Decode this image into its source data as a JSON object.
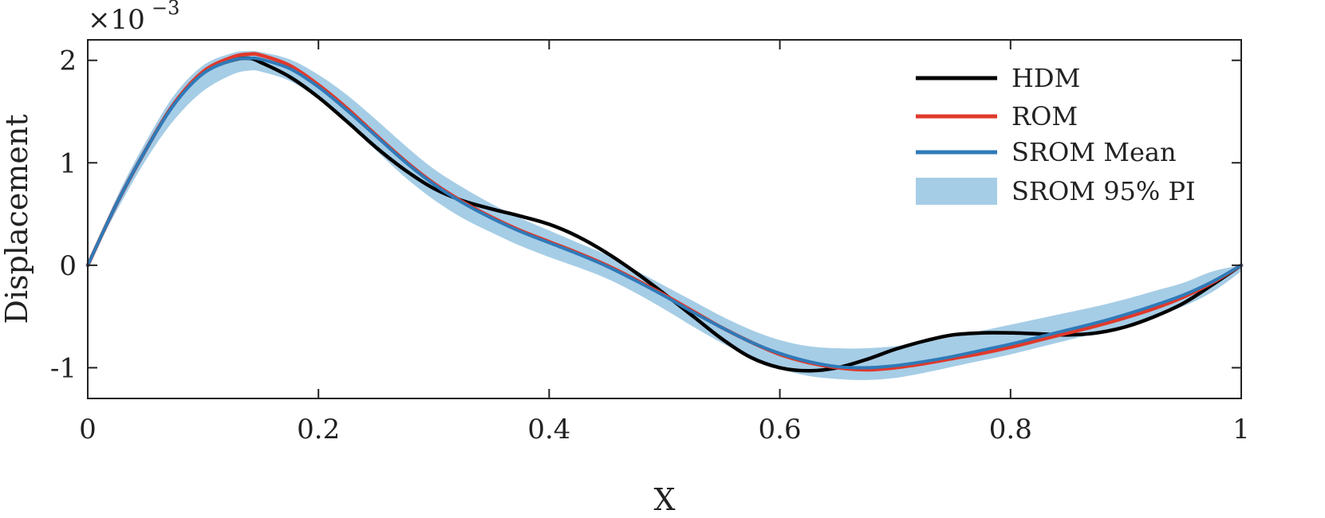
{
  "chart_data": {
    "type": "line",
    "xlabel": "X",
    "ylabel": "Displacement",
    "y_multiplier": "×10",
    "y_multiplier_exponent": "−3",
    "xlim": [
      0,
      1
    ],
    "ylim": [
      -1.3,
      2.2
    ],
    "x_ticks": [
      0,
      0.2,
      0.4,
      0.6,
      0.8,
      1
    ],
    "x_tick_labels": [
      "0",
      "0.2",
      "0.4",
      "0.6",
      "0.8",
      "1"
    ],
    "y_ticks": [
      -1,
      0,
      1,
      2
    ],
    "y_tick_labels": [
      "-1",
      "0",
      "1",
      "2"
    ],
    "grid": false,
    "legend_position": "top-right",
    "series": [
      {
        "name": "HDM",
        "color": "#000000",
        "x": [
          0,
          0.025,
          0.05,
          0.075,
          0.1,
          0.125,
          0.14,
          0.15,
          0.175,
          0.2,
          0.225,
          0.25,
          0.275,
          0.3,
          0.325,
          0.35,
          0.375,
          0.4,
          0.425,
          0.45,
          0.475,
          0.5,
          0.525,
          0.55,
          0.575,
          0.6,
          0.625,
          0.65,
          0.675,
          0.7,
          0.725,
          0.75,
          0.775,
          0.8,
          0.825,
          0.85,
          0.875,
          0.9,
          0.925,
          0.95,
          0.975,
          1.0
        ],
        "y": [
          0,
          0.6,
          1.12,
          1.58,
          1.88,
          2.0,
          2.02,
          1.98,
          1.84,
          1.64,
          1.4,
          1.15,
          0.93,
          0.75,
          0.63,
          0.55,
          0.48,
          0.4,
          0.28,
          0.12,
          -0.07,
          -0.28,
          -0.5,
          -0.72,
          -0.9,
          -1.0,
          -1.03,
          -1.0,
          -0.92,
          -0.82,
          -0.74,
          -0.68,
          -0.66,
          -0.66,
          -0.67,
          -0.68,
          -0.66,
          -0.6,
          -0.5,
          -0.37,
          -0.19,
          0
        ]
      },
      {
        "name": "ROM",
        "color": "#e0392b",
        "x": [
          0,
          0.025,
          0.05,
          0.075,
          0.1,
          0.125,
          0.14,
          0.15,
          0.175,
          0.2,
          0.225,
          0.25,
          0.275,
          0.3,
          0.325,
          0.35,
          0.375,
          0.4,
          0.425,
          0.45,
          0.475,
          0.5,
          0.525,
          0.55,
          0.575,
          0.6,
          0.625,
          0.65,
          0.675,
          0.7,
          0.725,
          0.75,
          0.775,
          0.8,
          0.825,
          0.85,
          0.875,
          0.9,
          0.925,
          0.95,
          0.975,
          1.0
        ],
        "y": [
          0,
          0.6,
          1.12,
          1.58,
          1.89,
          2.03,
          2.06,
          2.05,
          1.95,
          1.76,
          1.53,
          1.27,
          1.02,
          0.8,
          0.62,
          0.47,
          0.34,
          0.23,
          0.12,
          0.0,
          -0.14,
          -0.29,
          -0.45,
          -0.61,
          -0.75,
          -0.87,
          -0.95,
          -1.0,
          -1.02,
          -1.0,
          -0.96,
          -0.91,
          -0.86,
          -0.8,
          -0.73,
          -0.66,
          -0.59,
          -0.51,
          -0.42,
          -0.31,
          -0.17,
          0
        ]
      },
      {
        "name": "SROM Mean",
        "color": "#2f7ab8",
        "x": [
          0,
          0.025,
          0.05,
          0.075,
          0.1,
          0.125,
          0.14,
          0.15,
          0.175,
          0.2,
          0.225,
          0.25,
          0.275,
          0.3,
          0.325,
          0.35,
          0.375,
          0.4,
          0.425,
          0.45,
          0.475,
          0.5,
          0.525,
          0.55,
          0.575,
          0.6,
          0.625,
          0.65,
          0.675,
          0.7,
          0.725,
          0.75,
          0.775,
          0.8,
          0.825,
          0.85,
          0.875,
          0.9,
          0.925,
          0.95,
          0.975,
          1.0
        ],
        "y": [
          0,
          0.6,
          1.12,
          1.57,
          1.87,
          2.0,
          2.02,
          2.01,
          1.92,
          1.74,
          1.51,
          1.26,
          1.01,
          0.79,
          0.61,
          0.46,
          0.33,
          0.22,
          0.11,
          -0.01,
          -0.15,
          -0.3,
          -0.46,
          -0.61,
          -0.75,
          -0.86,
          -0.94,
          -0.99,
          -1.0,
          -0.98,
          -0.94,
          -0.89,
          -0.83,
          -0.77,
          -0.7,
          -0.63,
          -0.56,
          -0.48,
          -0.39,
          -0.29,
          -0.16,
          0
        ]
      }
    ],
    "band": {
      "name": "SROM 95% PI",
      "color": "#a6cde6",
      "x": [
        0,
        0.025,
        0.05,
        0.075,
        0.1,
        0.125,
        0.14,
        0.15,
        0.175,
        0.2,
        0.225,
        0.25,
        0.275,
        0.3,
        0.325,
        0.35,
        0.375,
        0.4,
        0.425,
        0.45,
        0.475,
        0.5,
        0.525,
        0.55,
        0.575,
        0.6,
        0.625,
        0.65,
        0.675,
        0.7,
        0.725,
        0.75,
        0.775,
        0.8,
        0.825,
        0.85,
        0.875,
        0.9,
        0.925,
        0.95,
        0.975,
        1.0
      ],
      "lower": [
        0,
        0.53,
        1.02,
        1.42,
        1.7,
        1.86,
        1.9,
        1.89,
        1.8,
        1.62,
        1.38,
        1.12,
        0.86,
        0.64,
        0.46,
        0.32,
        0.19,
        0.08,
        -0.02,
        -0.13,
        -0.27,
        -0.43,
        -0.6,
        -0.76,
        -0.9,
        -1.01,
        -1.08,
        -1.11,
        -1.12,
        -1.1,
        -1.05,
        -0.99,
        -0.93,
        -0.87,
        -0.8,
        -0.73,
        -0.66,
        -0.59,
        -0.5,
        -0.4,
        -0.26,
        -0.06
      ],
      "upper": [
        0,
        0.66,
        1.2,
        1.66,
        1.95,
        2.07,
        2.09,
        2.08,
        2.01,
        1.86,
        1.66,
        1.42,
        1.17,
        0.94,
        0.76,
        0.6,
        0.46,
        0.34,
        0.22,
        0.1,
        -0.05,
        -0.2,
        -0.35,
        -0.5,
        -0.63,
        -0.73,
        -0.79,
        -0.81,
        -0.81,
        -0.79,
        -0.75,
        -0.7,
        -0.64,
        -0.58,
        -0.52,
        -0.46,
        -0.4,
        -0.33,
        -0.25,
        -0.17,
        -0.06,
        0
      ]
    }
  }
}
